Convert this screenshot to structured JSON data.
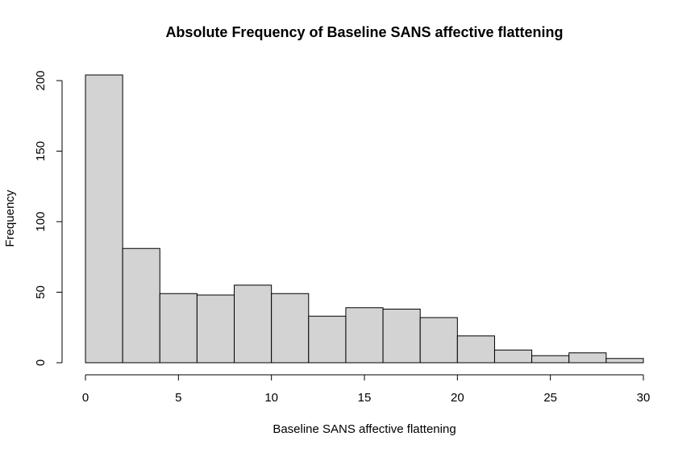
{
  "chart_data": {
    "type": "bar",
    "title": "Absolute Frequency of Baseline SANS affective flattening",
    "xlabel": "Baseline SANS affective flattening",
    "ylabel": "Frequency",
    "bins": [
      {
        "start": 0,
        "end": 2,
        "value": 204
      },
      {
        "start": 2,
        "end": 4,
        "value": 81
      },
      {
        "start": 4,
        "end": 6,
        "value": 49
      },
      {
        "start": 6,
        "end": 8,
        "value": 48
      },
      {
        "start": 8,
        "end": 10,
        "value": 55
      },
      {
        "start": 10,
        "end": 12,
        "value": 49
      },
      {
        "start": 12,
        "end": 14,
        "value": 33
      },
      {
        "start": 14,
        "end": 16,
        "value": 39
      },
      {
        "start": 16,
        "end": 18,
        "value": 38
      },
      {
        "start": 18,
        "end": 20,
        "value": 32
      },
      {
        "start": 20,
        "end": 22,
        "value": 19
      },
      {
        "start": 22,
        "end": 24,
        "value": 9
      },
      {
        "start": 24,
        "end": 26,
        "value": 5
      },
      {
        "start": 26,
        "end": 28,
        "value": 7
      },
      {
        "start": 28,
        "end": 30,
        "value": 3
      }
    ],
    "xlim": [
      0,
      30
    ],
    "ylim": [
      0,
      204
    ],
    "x_ticks": [
      0,
      5,
      10,
      15,
      20,
      25,
      30
    ],
    "x_tick_labels": [
      "0",
      "5",
      "10",
      "15",
      "20",
      "25",
      "30"
    ],
    "y_ticks": [
      0,
      50,
      100,
      150,
      200
    ],
    "y_tick_labels": [
      "0",
      "50",
      "100",
      "150",
      "200"
    ],
    "grid": false,
    "legend": "none",
    "bar_fill": "#d3d3d3",
    "bar_stroke": "#000000"
  }
}
